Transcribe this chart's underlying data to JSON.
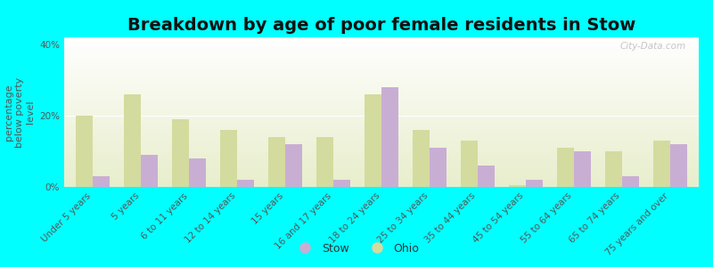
{
  "title": "Breakdown by age of poor female residents in Stow",
  "ylabel": "percentage\nbelow poverty\nlevel",
  "categories": [
    "Under 5 years",
    "5 years",
    "6 to 11 years",
    "12 to 14 years",
    "15 years",
    "16 and 17 years",
    "18 to 24 years",
    "25 to 34 years",
    "35 to 44 years",
    "45 to 54 years",
    "55 to 64 years",
    "65 to 74 years",
    "75 years and over"
  ],
  "stow_values": [
    3.0,
    9.0,
    8.0,
    2.0,
    12.0,
    2.0,
    28.0,
    11.0,
    6.0,
    2.0,
    10.0,
    3.0,
    12.0
  ],
  "ohio_values": [
    20.0,
    26.0,
    19.0,
    16.0,
    14.0,
    14.0,
    26.0,
    16.0,
    13.0,
    0.5,
    11.0,
    10.0,
    13.0
  ],
  "stow_color": "#c9aed4",
  "ohio_color": "#d4db9e",
  "background_color": "#00ffff",
  "bar_width": 0.35,
  "ylim": [
    0,
    42
  ],
  "yticks": [
    0,
    20,
    40
  ],
  "ytick_labels": [
    "0%",
    "20%",
    "40%"
  ],
  "legend_labels": [
    "Stow",
    "Ohio"
  ],
  "title_fontsize": 14,
  "axis_label_fontsize": 8,
  "tick_fontsize": 7.5,
  "watermark": "City-Data.com"
}
